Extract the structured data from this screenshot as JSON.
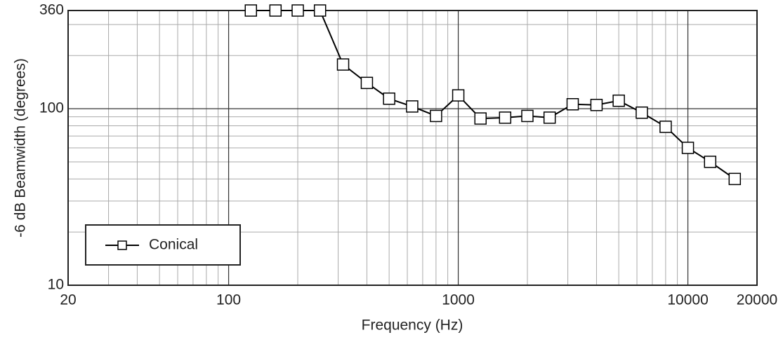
{
  "chart_data": {
    "type": "line",
    "x_label": "Frequency (Hz)",
    "y_label": "-6 dB Beamwidth (degrees)",
    "xscale": "log",
    "yscale": "log",
    "x": [
      125,
      160,
      200,
      250,
      315,
      400,
      500,
      630,
      800,
      1000,
      1250,
      1600,
      2000,
      2500,
      3150,
      4000,
      5000,
      6300,
      8000,
      10000,
      12500,
      16000
    ],
    "series": [
      {
        "name": "Conical",
        "color": "#000000",
        "marker": "square",
        "values": [
          360,
          360,
          360,
          360,
          178,
          140,
          114,
          103,
          91,
          119,
          88,
          89,
          91,
          89,
          106,
          105,
          111,
          95,
          79,
          60,
          50,
          40
        ]
      }
    ],
    "xlim": [
      20,
      20000
    ],
    "ylim": [
      10,
      360
    ],
    "xticks": [
      20,
      100,
      1000,
      10000,
      20000
    ],
    "yticks": [
      10,
      100,
      360
    ],
    "x_minor_grid": [
      30,
      40,
      50,
      60,
      70,
      80,
      90,
      200,
      300,
      400,
      500,
      600,
      700,
      800,
      900,
      2000,
      3000,
      4000,
      5000,
      6000,
      7000,
      8000,
      9000
    ],
    "y_minor_grid": [
      20,
      30,
      40,
      50,
      60,
      70,
      80,
      90,
      200,
      300
    ],
    "grid": true,
    "legend": "lower left"
  }
}
